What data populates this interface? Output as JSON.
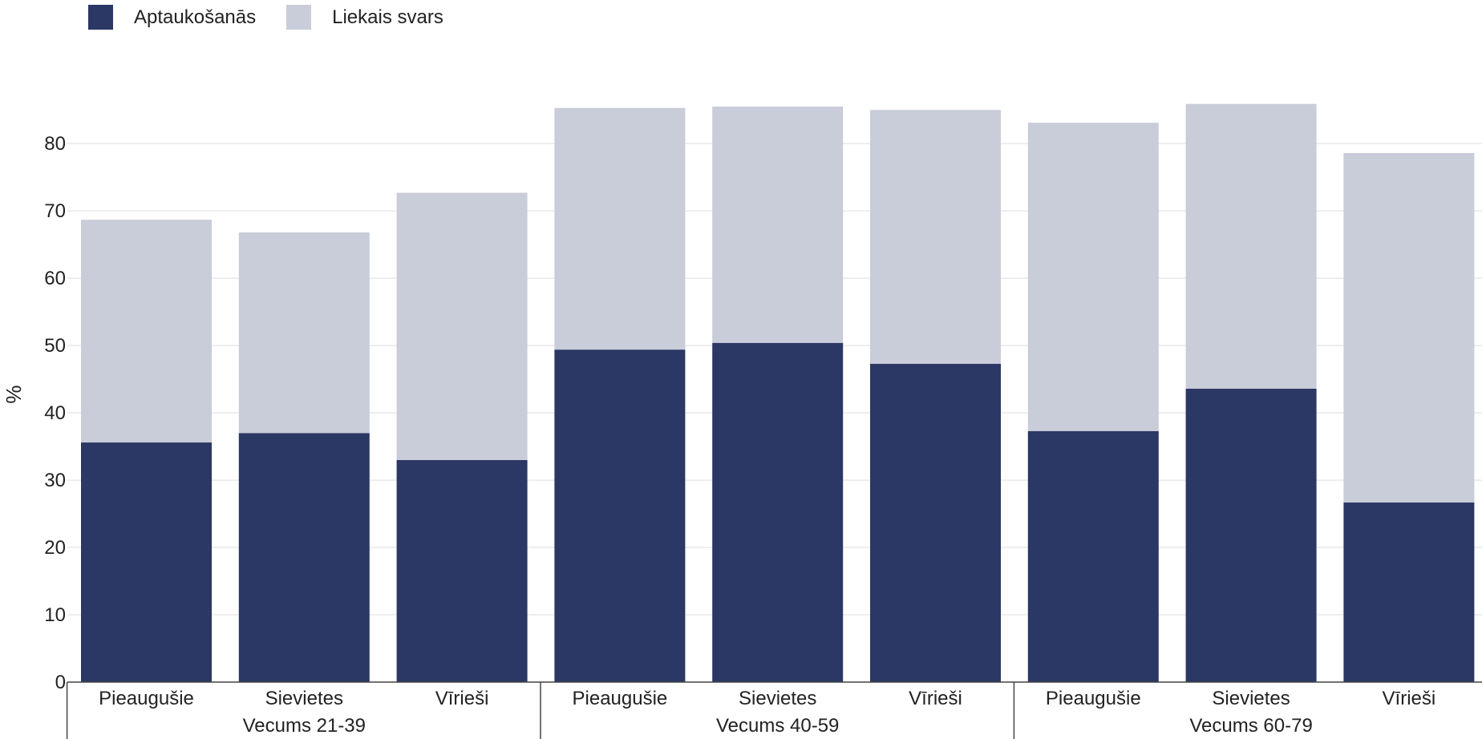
{
  "chart_data": {
    "type": "bar",
    "stacked": true,
    "ylabel": "%",
    "xlabel": "",
    "ylim": [
      0,
      85.5
    ],
    "yticks": [
      0,
      10,
      20,
      30,
      40,
      50,
      60,
      70,
      80
    ],
    "grid": true,
    "legend_position": "top-left",
    "categories": [
      "Pieaugušie",
      "Sievietes",
      "Vīrieši",
      "Pieaugušie",
      "Sievietes",
      "Vīrieši",
      "Pieaugušie",
      "Sievietes",
      "Vīrieši"
    ],
    "groups": [
      {
        "label": "Vecums 21-39",
        "start": 0,
        "end": 2
      },
      {
        "label": "Vecums 40-59",
        "start": 3,
        "end": 5
      },
      {
        "label": "Vecums 60-79",
        "start": 6,
        "end": 8
      }
    ],
    "series": [
      {
        "name": "Aptaukošanās",
        "color": "#2b3764",
        "values": [
          35.6,
          37.0,
          33.0,
          49.4,
          50.4,
          47.3,
          37.3,
          43.6,
          26.7
        ]
      },
      {
        "name": "Liekais svars",
        "color": "#c9ccd9",
        "values": [
          33.1,
          29.8,
          39.7,
          35.9,
          35.1,
          37.7,
          45.8,
          42.3,
          51.9
        ]
      }
    ]
  }
}
